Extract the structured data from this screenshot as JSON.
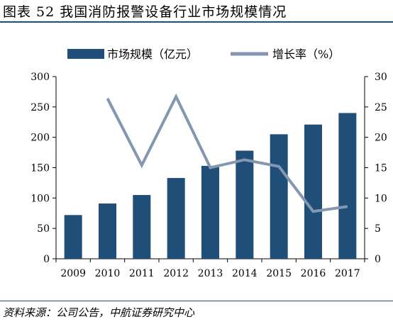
{
  "header": {
    "title": "图表 52 我国消防报警设备行业市场规模情况"
  },
  "footer": {
    "source": "资料来源：公司公告，中航证券研究中心"
  },
  "colors": {
    "bar": "#1f4e79",
    "line": "#8497b0",
    "rule": "#1f4e79"
  },
  "chart_data": {
    "type": "bar",
    "categories": [
      "2009",
      "2010",
      "2011",
      "2012",
      "2013",
      "2014",
      "2015",
      "2016",
      "2017"
    ],
    "series": [
      {
        "name": "市场规模（亿元）",
        "type": "bar",
        "axis": "left",
        "values": [
          72,
          91,
          105,
          133,
          153,
          178,
          205,
          221,
          240
        ]
      },
      {
        "name": "增长率（%）",
        "type": "line",
        "axis": "right",
        "values": [
          null,
          26.4,
          15.4,
          26.7,
          15.0,
          16.3,
          15.2,
          7.8,
          8.6
        ]
      }
    ],
    "left_axis": {
      "ylim": [
        0,
        300
      ],
      "ticks": [
        "0",
        "50",
        "100",
        "150",
        "200",
        "250",
        "300"
      ]
    },
    "right_axis": {
      "ylim": [
        0,
        30
      ],
      "ticks": [
        "0",
        "5",
        "10",
        "15",
        "20",
        "25",
        "30"
      ]
    },
    "legend": {
      "position": "top"
    },
    "grid": false
  }
}
